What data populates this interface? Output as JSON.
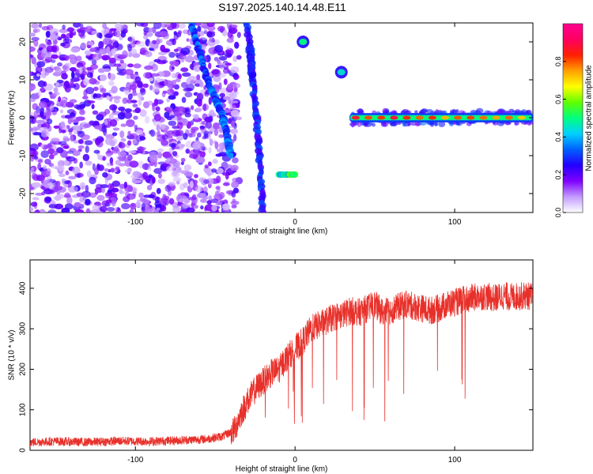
{
  "title": "S197.2025.140.14.48.E11",
  "chart_data": [
    {
      "type": "heatmap",
      "xlabel": "Height of straight line (km)",
      "ylabel": "Frequency (Hz)",
      "xlim": [
        -166,
        149
      ],
      "ylim": [
        -25,
        25
      ],
      "xticks": [
        -100,
        0,
        100
      ],
      "yticks": [
        -20,
        -10,
        0,
        10,
        20
      ],
      "colorbar": {
        "label": "Normalized spectral amplitude",
        "range": [
          0,
          1
        ],
        "ticks": [
          0.0,
          0.2,
          0.4,
          0.6,
          0.8
        ],
        "colors": [
          "#ffffff",
          "#c39bff",
          "#7f00ff",
          "#2200ff",
          "#0060ff",
          "#00d0ff",
          "#00ff80",
          "#60ff00",
          "#ffff00",
          "#ffa000",
          "#ff2000",
          "#ff0060",
          "#ff0090"
        ]
      },
      "features": [
        {
          "name": "noise",
          "x_range": [
            -166,
            -35
          ],
          "y_range": [
            -25,
            25
          ],
          "amplitude": 0.12
        },
        {
          "name": "diagonal streak",
          "x": [
            -65,
            -55,
            -45,
            -40
          ],
          "y": [
            25,
            10,
            0,
            -10
          ],
          "amplitude": 0.3
        },
        {
          "name": "streak",
          "x": [
            -30,
            -24,
            -20
          ],
          "y": [
            25,
            0,
            -25
          ],
          "amplitude": 0.25
        },
        {
          "name": "streak",
          "x": [
            -28,
            -27
          ],
          "y": [
            19,
            11
          ],
          "amplitude": 0.25
        },
        {
          "name": "cluster",
          "x": [
            -10,
            0
          ],
          "y": [
            -15,
            -15
          ],
          "amplitude": 0.45
        },
        {
          "name": "blob",
          "x": [
            5
          ],
          "y": [
            20
          ],
          "amplitude": 0.5
        },
        {
          "name": "blob",
          "x": [
            29
          ],
          "y": [
            12
          ],
          "amplitude": 0.45
        },
        {
          "name": "tone",
          "x_range": [
            36,
            148
          ],
          "y": 0,
          "amplitude": 0.7
        }
      ]
    },
    {
      "type": "line",
      "xlabel": "Height of straight line (km)",
      "ylabel": "SNR (10 * v/v)",
      "xlim": [
        -166,
        149
      ],
      "ylim": [
        0,
        470
      ],
      "xticks": [
        -100,
        0,
        100
      ],
      "yticks": [
        0,
        100,
        200,
        300,
        400
      ],
      "color": "#e8302a",
      "x": [
        -166,
        -150,
        -130,
        -110,
        -90,
        -70,
        -55,
        -45,
        -38,
        -34,
        -30,
        -25,
        -20,
        -15,
        -10,
        -5,
        0,
        5,
        10,
        15,
        20,
        25,
        30,
        35,
        40,
        45,
        50,
        55,
        60,
        65,
        70,
        75,
        80,
        85,
        90,
        95,
        100,
        105,
        110,
        115,
        120,
        125,
        130,
        135,
        140,
        145,
        149
      ],
      "y": [
        20,
        22,
        20,
        23,
        22,
        25,
        28,
        35,
        50,
        90,
        120,
        150,
        170,
        190,
        200,
        230,
        250,
        270,
        300,
        310,
        320,
        330,
        335,
        345,
        340,
        350,
        360,
        340,
        345,
        355,
        360,
        355,
        350,
        345,
        350,
        360,
        365,
        370,
        375,
        380,
        380,
        375,
        382,
        378,
        380,
        382,
        378
      ]
    }
  ]
}
